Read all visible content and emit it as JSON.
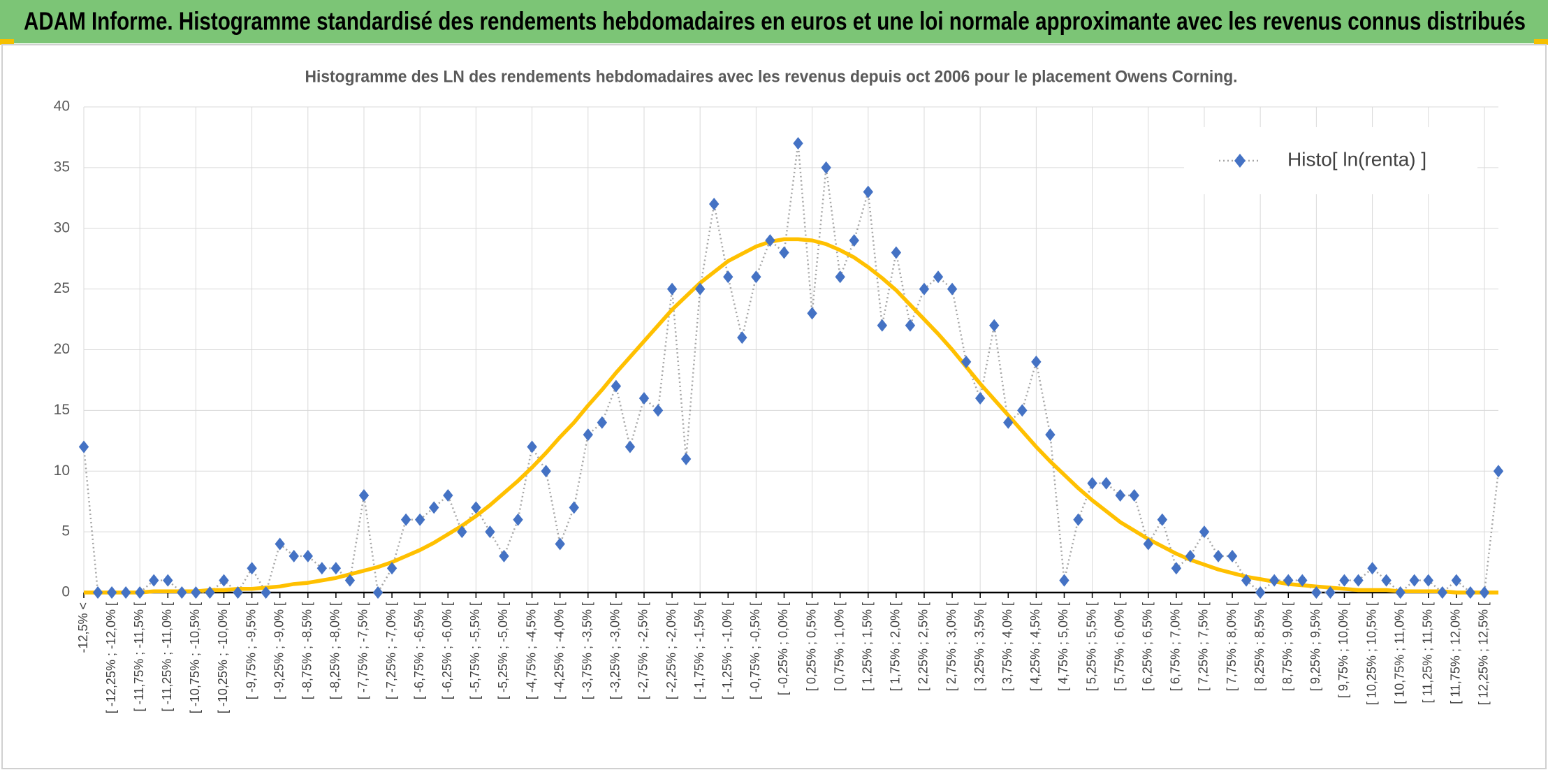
{
  "header": {
    "title": "ADAM Informe. Histogramme standardisé des rendements hebdomadaires en euros et une loi normale approximante avec les revenus connus distribués"
  },
  "chart_data": {
    "type": "line",
    "title": "Histogramme des LN des rendements hebdomadaires avec les revenus depuis oct 2006 pour le placement Owens Corning.",
    "categories": [
      "-12,5% <",
      null,
      "[ -12,25% ; -12,0% [",
      null,
      "[ -11,75% ; -11,5% [",
      null,
      "[ -11,25% ; -11,0% [",
      null,
      "[ -10,75% ; -10,5% [",
      null,
      "[ -10,25% ; -10,0% [",
      null,
      "[ -9,75% ; -9,5% [",
      null,
      "[ -9,25% ; -9,0% [",
      null,
      "[ -8,75% ; -8,5% [",
      null,
      "[ -8,25% ; -8,0% [",
      null,
      "[ -7,75% ; -7,5% [",
      null,
      "[ -7,25% ; -7,0% [",
      null,
      "[ -6,75% ; -6,5% [",
      null,
      "[ -6,25% ; -6,0% [",
      null,
      "[ -5,75% ; -5,5% [",
      null,
      "[ -5,25% ; -5,0% [",
      null,
      "[ -4,75% ; -4,5% [",
      null,
      "[ -4,25% ; -4,0% [",
      null,
      "[ -3,75% ; -3,5% [",
      null,
      "[ -3,25% ; -3,0% [",
      null,
      "[ -2,75% ; -2,5% [",
      null,
      "[ -2,25% ; -2,0% [",
      null,
      "[ -1,75% ; -1,5% [",
      null,
      "[ -1,25% ; -1,0% [",
      null,
      "[ -0,75% ; -0,5% [",
      null,
      "[ -0,25% ; 0,0% [",
      null,
      "[ 0,25% ; 0,5% [",
      null,
      "[ 0,75% ; 1,0% [",
      null,
      "[ 1,25% ; 1,5% [",
      null,
      "[ 1,75% ; 2,0% [",
      null,
      "[ 2,25% ; 2,5% [",
      null,
      "[ 2,75% ; 3,0% [",
      null,
      "[ 3,25% ; 3,5% [",
      null,
      "[ 3,75% ; 4,0% [",
      null,
      "[ 4,25% ; 4,5% [",
      null,
      "[ 4,75% ; 5,0% [",
      null,
      "[ 5,25% ; 5,5% [",
      null,
      "[ 5,75% ; 6,0% [",
      null,
      "[ 6,25% ; 6,5% [",
      null,
      "[ 6,75% ; 7,0% [",
      null,
      "[ 7,25% ; 7,5% [",
      null,
      "[ 7,75% ; 8,0% [",
      null,
      "[ 8,25% ; 8,5% [",
      null,
      "[ 8,75% ; 9,0% [",
      null,
      "[ 9,25% ; 9,5% [",
      null,
      "[ 9,75% ; 10,0% [",
      null,
      "[ 10,25% ; 10,5% [",
      null,
      "[ 10,75% ; 11,0% [",
      null,
      "[ 11,25% ; 11,5% [",
      null,
      "[ 11,75% ; 12,0% [",
      null,
      "[ 12,25% ; 12,5% [",
      null
    ],
    "series": [
      {
        "name": "Histo[ ln(renta) ]",
        "color": "#4472c4",
        "line_color": "#a6a6a6",
        "values": [
          12,
          0,
          0,
          0,
          0,
          1,
          1,
          0,
          0,
          0,
          1,
          0,
          2,
          0,
          4,
          3,
          3,
          2,
          2,
          1,
          8,
          0,
          2,
          6,
          6,
          7,
          8,
          5,
          7,
          5,
          3,
          6,
          12,
          10,
          4,
          7,
          13,
          14,
          17,
          12,
          16,
          15,
          25,
          11,
          25,
          32,
          26,
          21,
          26,
          29,
          28,
          37,
          23,
          35,
          26,
          29,
          33,
          22,
          28,
          22,
          25,
          26,
          25,
          19,
          16,
          22,
          14,
          15,
          19,
          13,
          1,
          6,
          9,
          9,
          8,
          8,
          4,
          6,
          2,
          3,
          5,
          3,
          3,
          1,
          0,
          1,
          1,
          1,
          0,
          0,
          1,
          1,
          2,
          1,
          0,
          1,
          1,
          0,
          1,
          0,
          0,
          10
        ]
      },
      {
        "color": "#ffc000",
        "values": [
          0.0,
          0.0,
          0.0,
          0.0,
          0.0,
          0.1,
          0.1,
          0.1,
          0.1,
          0.2,
          0.2,
          0.3,
          0.3,
          0.4,
          0.5,
          0.7,
          0.8,
          1.0,
          1.2,
          1.5,
          1.8,
          2.1,
          2.5,
          3.0,
          3.5,
          4.1,
          4.8,
          5.5,
          6.3,
          7.2,
          8.2,
          9.2,
          10.3,
          11.5,
          12.8,
          14.0,
          15.4,
          16.7,
          18.1,
          19.4,
          20.7,
          22.0,
          23.3,
          24.4,
          25.5,
          26.4,
          27.3,
          27.9,
          28.5,
          28.9,
          29.1,
          29.1,
          29.0,
          28.7,
          28.2,
          27.6,
          26.8,
          25.9,
          24.9,
          23.7,
          22.5,
          21.3,
          20.0,
          18.6,
          17.2,
          15.9,
          14.6,
          13.3,
          12.0,
          10.8,
          9.7,
          8.6,
          7.6,
          6.7,
          5.8,
          5.1,
          4.4,
          3.8,
          3.2,
          2.7,
          2.3,
          1.9,
          1.6,
          1.3,
          1.1,
          0.9,
          0.7,
          0.6,
          0.5,
          0.4,
          0.3,
          0.2,
          0.2,
          0.2,
          0.1,
          0.1,
          0.1,
          0.1,
          0.0,
          0.0,
          0.0,
          0.0
        ]
      }
    ],
    "ylim": [
      0,
      40
    ],
    "yticks": [
      0,
      5,
      10,
      15,
      20,
      25,
      30,
      35,
      40
    ],
    "grid": true,
    "legend": "top-right"
  }
}
